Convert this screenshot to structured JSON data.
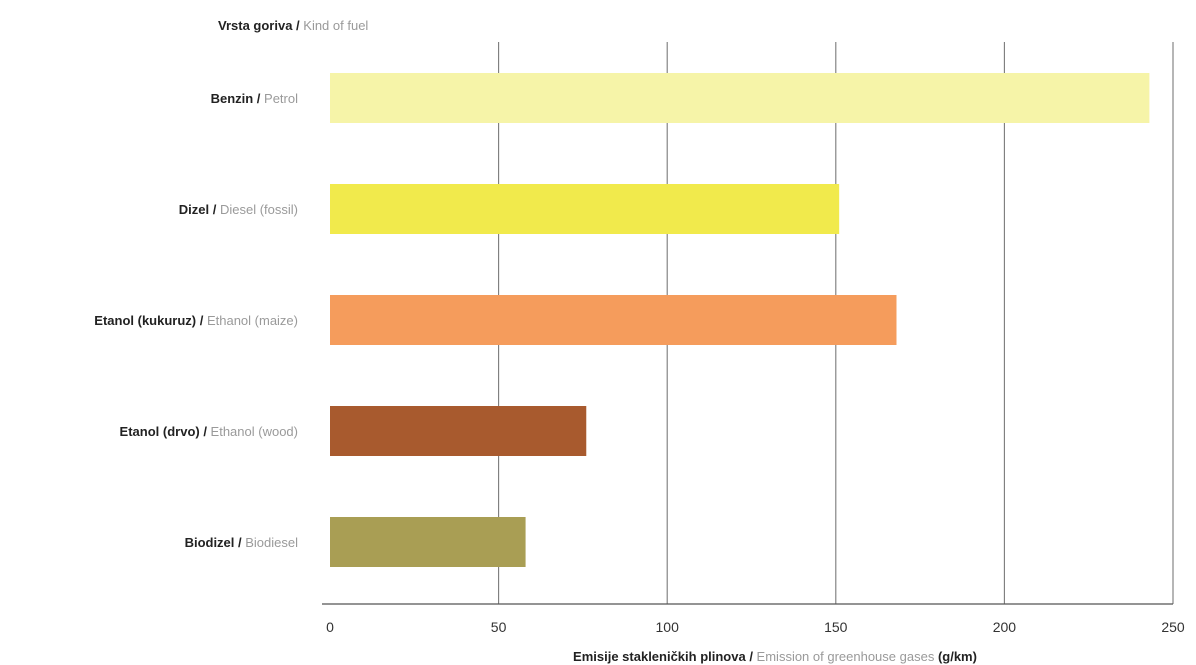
{
  "chart_data": {
    "type": "bar",
    "orientation": "horizontal",
    "y_title": {
      "primary": "Vrsta goriva /",
      "secondary": " Kind of fuel"
    },
    "x_title": {
      "primary": "Emisije stakleničkih plinova /",
      "secondary": " Emission of greenhouse gases",
      "unit": "  (g/km)"
    },
    "xlim": [
      0,
      250
    ],
    "x_ticks": [
      0,
      50,
      100,
      150,
      200,
      250
    ],
    "grid": true,
    "categories": [
      {
        "primary": "Benzin /",
        "secondary": " Petrol",
        "value": 243,
        "color": "#f6f4a8"
      },
      {
        "primary": "Dizel /",
        "secondary": " Diesel (fossil)",
        "value": 151,
        "color": "#f1ea4c"
      },
      {
        "primary": "Etanol (kukuruz) /",
        "secondary": " Ethanol (maize)",
        "value": 168,
        "color": "#f59c5c"
      },
      {
        "primary": "Etanol (drvo) /",
        "secondary": " Ethanol (wood)",
        "value": 76,
        "color": "#a85a2e"
      },
      {
        "primary": "Biodizel /",
        "secondary": " Biodiesel",
        "value": 58,
        "color": "#a99e54"
      }
    ]
  }
}
